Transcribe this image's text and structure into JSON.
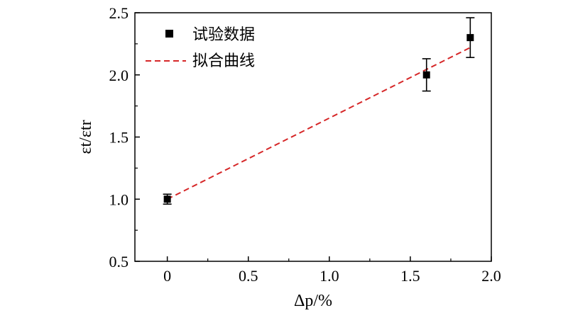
{
  "chart_data": {
    "type": "scatter",
    "xlabel": "Δp/%",
    "ylabel": "εt/εtr",
    "xlim": [
      -0.2,
      2.0
    ],
    "ylim": [
      0.5,
      2.5
    ],
    "x_ticks": [
      0,
      0.5,
      1.0,
      1.5,
      2.0
    ],
    "x_tick_labels": [
      "0",
      "0.5",
      "1.0",
      "1.5",
      "2.0"
    ],
    "y_ticks": [
      0.5,
      1.0,
      1.5,
      2.0,
      2.5
    ],
    "y_tick_labels": [
      "0.5",
      "1.0",
      "1.5",
      "2.0",
      "2.5"
    ],
    "grid": false,
    "legend_position": "top-left",
    "series": [
      {
        "name": "试验数据",
        "kind": "scatter",
        "color": "#000000",
        "marker": "square",
        "x": [
          0,
          1.6,
          1.87
        ],
        "y": [
          1.0,
          2.0,
          2.3
        ],
        "yerr": [
          0.04,
          0.13,
          0.16
        ]
      },
      {
        "name": "拟合曲线",
        "kind": "line",
        "color": "#d62728",
        "dash": "dashed",
        "x": [
          0,
          1.87
        ],
        "y": [
          1.0,
          2.22
        ]
      }
    ]
  }
}
